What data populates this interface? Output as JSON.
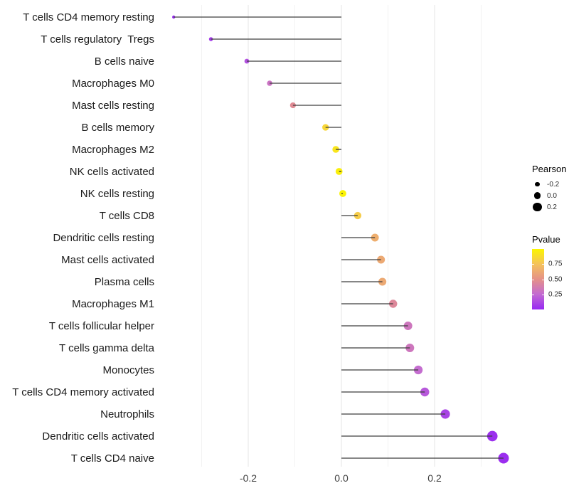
{
  "chart_data": {
    "type": "lollipop",
    "orientation": "horizontal",
    "title": "",
    "xlabel": "",
    "ylabel": "",
    "x_axis": {
      "major_ticks": [
        -0.2,
        0.0,
        0.2
      ],
      "tick_labels": [
        "-0.2",
        "0.0",
        "0.2"
      ],
      "minor_gridlines": [
        -0.3,
        -0.1,
        0.1,
        0.3
      ],
      "range": [
        -0.39,
        0.38
      ],
      "grid": "vertical-only"
    },
    "rows": [
      {
        "label": "T cells CD4 memory resting",
        "pearson": -0.36,
        "pvalue": 0.01
      },
      {
        "label": "T cells regulatory  Tregs",
        "pearson": -0.28,
        "pvalue": 0.07
      },
      {
        "label": "B cells naive",
        "pearson": -0.203,
        "pvalue": 0.15
      },
      {
        "label": "Macrophages M0",
        "pearson": -0.154,
        "pvalue": 0.3
      },
      {
        "label": "Mast cells resting",
        "pearson": -0.104,
        "pvalue": 0.46
      },
      {
        "label": "B cells memory",
        "pearson": -0.034,
        "pvalue": 0.85
      },
      {
        "label": "Macrophages M2",
        "pearson": -0.012,
        "pvalue": 0.92
      },
      {
        "label": "NK cells activated",
        "pearson": -0.005,
        "pvalue": 0.97
      },
      {
        "label": "NK cells resting",
        "pearson": 0.003,
        "pvalue": 0.99
      },
      {
        "label": "T cells CD8",
        "pearson": 0.035,
        "pvalue": 0.8
      },
      {
        "label": "Dendritic cells resting",
        "pearson": 0.072,
        "pvalue": 0.65
      },
      {
        "label": "Mast cells activated",
        "pearson": 0.085,
        "pvalue": 0.62
      },
      {
        "label": "Plasma cells",
        "pearson": 0.088,
        "pvalue": 0.62
      },
      {
        "label": "Macrophages M1",
        "pearson": 0.111,
        "pvalue": 0.44
      },
      {
        "label": "T cells follicular helper",
        "pearson": 0.143,
        "pvalue": 0.32
      },
      {
        "label": "T cells gamma delta",
        "pearson": 0.147,
        "pvalue": 0.32
      },
      {
        "label": "Monocytes",
        "pearson": 0.165,
        "pvalue": 0.26
      },
      {
        "label": "T cells CD4 memory activated",
        "pearson": 0.179,
        "pvalue": 0.18
      },
      {
        "label": "Neutrophils",
        "pearson": 0.223,
        "pvalue": 0.1
      },
      {
        "label": "Dendritic cells activated",
        "pearson": 0.324,
        "pvalue": 0.03
      },
      {
        "label": "T cells CD4 naive",
        "pearson": 0.348,
        "pvalue": 0.02
      }
    ],
    "legend": {
      "pearson": {
        "title": "Pearson",
        "entries": [
          {
            "label": "-0.2",
            "value": -0.2
          },
          {
            "label": "0.0",
            "value": 0.0
          },
          {
            "label": "0.2",
            "value": 0.2
          }
        ],
        "dot_color": "#000000"
      },
      "pvalue": {
        "title": "Pvalue",
        "ticks": [
          {
            "label": "0.75",
            "value": 0.75
          },
          {
            "label": "0.50",
            "value": 0.5
          },
          {
            "label": "0.25",
            "value": 0.25
          }
        ],
        "gradient_stops": [
          {
            "p": 0.0,
            "color": "#9729F2"
          },
          {
            "p": 0.25,
            "color": "#C36BD2"
          },
          {
            "p": 0.5,
            "color": "#E59188"
          },
          {
            "p": 0.75,
            "color": "#F4C25C"
          },
          {
            "p": 1.0,
            "color": "#FBF500"
          }
        ]
      }
    },
    "colors": {
      "background": "#FFFFFF",
      "segment": "#3D3D3D",
      "grid_major": "#E4E4E4",
      "grid_minor": "#F2F2F2",
      "axis_text": "#404040",
      "label_text": "#1A1A1A"
    }
  }
}
